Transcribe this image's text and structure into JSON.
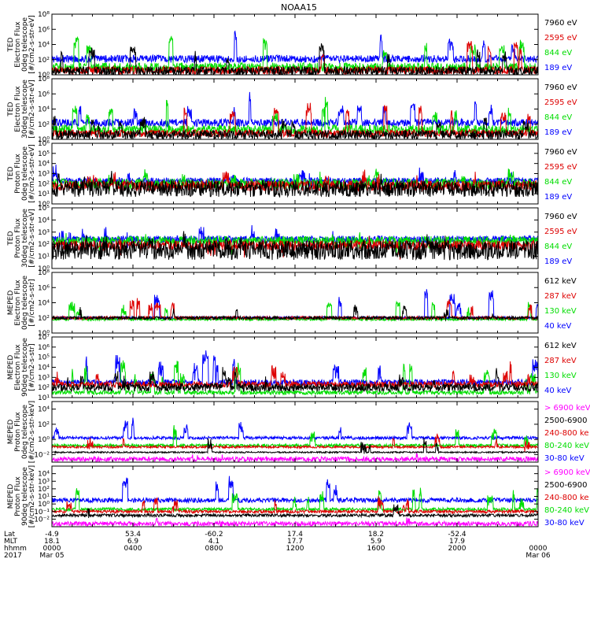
{
  "title": "NOAA15",
  "colors": {
    "black": "#000000",
    "red": "#dd0000",
    "green": "#00dd00",
    "blue": "#0000ff",
    "magenta": "#ff00ff"
  },
  "chart_data": [
    {
      "type": "line",
      "ylabel": [
        "TED",
        "Electron Flux",
        "0deg telescope",
        "[#/cm2-s-str-eV]"
      ],
      "log": true,
      "ylim_exp": [
        0,
        8
      ],
      "ytick_exps": [
        0,
        2,
        4,
        6,
        8
      ],
      "legend": [
        {
          "label": "7960 eV",
          "color": "black"
        },
        {
          "label": "2595 eV",
          "color": "red"
        },
        {
          "label": "844 eV",
          "color": "green"
        },
        {
          "label": "189 eV",
          "color": "blue"
        }
      ],
      "series": [
        {
          "color": "blue",
          "base_exp": 2.1,
          "noise": 0.5,
          "peak_exp": 6.5,
          "peak_prob": 0.055
        },
        {
          "color": "green",
          "base_exp": 1.0,
          "noise": 0.6,
          "peak_exp": 6.2,
          "peak_prob": 0.05
        },
        {
          "color": "red",
          "base_exp": 0.6,
          "noise": 0.5,
          "peak_exp": 5.2,
          "peak_prob": 0.045
        },
        {
          "color": "black",
          "base_exp": 0.5,
          "noise": 0.6,
          "peak_exp": 4.5,
          "peak_prob": 0.05
        }
      ]
    },
    {
      "type": "line",
      "ylabel": [
        "TED",
        "Electron Flux",
        "30deg telescope",
        "[#/cm2-s-str-eV]"
      ],
      "log": true,
      "ylim_exp": [
        0,
        8
      ],
      "ytick_exps": [
        0,
        2,
        4,
        6,
        8
      ],
      "legend": [
        {
          "label": "7960 eV",
          "color": "black"
        },
        {
          "label": "2595 eV",
          "color": "red"
        },
        {
          "label": "844 eV",
          "color": "green"
        },
        {
          "label": "189 eV",
          "color": "blue"
        }
      ],
      "series": [
        {
          "color": "blue",
          "base_exp": 2.2,
          "noise": 0.5,
          "peak_exp": 6.5,
          "peak_prob": 0.055
        },
        {
          "color": "green",
          "base_exp": 1.3,
          "noise": 0.6,
          "peak_exp": 6.0,
          "peak_prob": 0.05
        },
        {
          "color": "red",
          "base_exp": 0.8,
          "noise": 0.5,
          "peak_exp": 5.0,
          "peak_prob": 0.045
        },
        {
          "color": "black",
          "base_exp": 0.6,
          "noise": 0.6,
          "peak_exp": 4.4,
          "peak_prob": 0.05
        }
      ]
    },
    {
      "type": "line",
      "ylabel": [
        "TED",
        "Proton Flux",
        "0deg telescope",
        "[#/cm2-s-str-eV]"
      ],
      "log": true,
      "ylim_exp": [
        0,
        6
      ],
      "ytick_exps": [
        0,
        1,
        2,
        3,
        4,
        5,
        6
      ],
      "legend": [
        {
          "label": "7960 eV",
          "color": "black"
        },
        {
          "label": "2595 eV",
          "color": "red"
        },
        {
          "label": "844 eV",
          "color": "green"
        },
        {
          "label": "189 eV",
          "color": "blue"
        }
      ],
      "series": [
        {
          "color": "blue",
          "base_exp": 2.3,
          "noise": 0.3,
          "peak_exp": 4.0,
          "peak_prob": 0.03
        },
        {
          "color": "green",
          "base_exp": 2.0,
          "noise": 0.5,
          "peak_exp": 3.8,
          "peak_prob": 0.07
        },
        {
          "color": "red",
          "base_exp": 1.8,
          "noise": 0.5,
          "peak_exp": 3.5,
          "peak_prob": 0.05
        },
        {
          "color": "black",
          "base_exp": 1.5,
          "noise": 0.8,
          "peak_exp": 3.5,
          "peak_prob": 0.06
        }
      ]
    },
    {
      "type": "line",
      "ylabel": [
        "TED",
        "Proton Flux",
        "30deg telescope",
        "[#/cm2-s-str-eV]"
      ],
      "log": true,
      "ylim_exp": [
        0,
        5
      ],
      "ytick_exps": [
        0,
        1,
        2,
        3,
        4,
        5
      ],
      "legend": [
        {
          "label": "7960 eV",
          "color": "black"
        },
        {
          "label": "2595 eV",
          "color": "red"
        },
        {
          "label": "844 eV",
          "color": "green"
        },
        {
          "label": "189 eV",
          "color": "blue"
        }
      ],
      "series": [
        {
          "color": "blue",
          "base_exp": 2.4,
          "noise": 0.3,
          "peak_exp": 3.8,
          "peak_prob": 0.04
        },
        {
          "color": "green",
          "base_exp": 2.3,
          "noise": 0.35,
          "peak_exp": 3.2,
          "peak_prob": 0.06
        },
        {
          "color": "red",
          "base_exp": 1.9,
          "noise": 0.4,
          "peak_exp": 3.0,
          "peak_prob": 0.05
        },
        {
          "color": "black",
          "base_exp": 1.5,
          "noise": 0.8,
          "peak_exp": 3.3,
          "peak_prob": 0.06
        }
      ]
    },
    {
      "type": "line",
      "ylabel": [
        "MEPED",
        "Electron Flux",
        "0deg telescope",
        "[#/cm2-s-str]"
      ],
      "log": true,
      "ylim_exp": [
        0,
        8
      ],
      "ytick_exps": [
        0,
        2,
        4,
        6,
        8
      ],
      "legend": [
        {
          "label": "612 keV",
          "color": "black"
        },
        {
          "label": "287 keV",
          "color": "red"
        },
        {
          "label": "130 keV",
          "color": "green"
        },
        {
          "label": "40 keV",
          "color": "blue"
        }
      ],
      "series": [
        {
          "color": "blue",
          "base_exp": 2.0,
          "noise": 0.2,
          "peak_exp": 6.0,
          "peak_prob": 0.05
        },
        {
          "color": "green",
          "base_exp": 1.8,
          "noise": 0.15,
          "peak_exp": 5.0,
          "peak_prob": 0.045
        },
        {
          "color": "red",
          "base_exp": 2.0,
          "noise": 0.2,
          "peak_exp": 4.8,
          "peak_prob": 0.045
        },
        {
          "color": "black",
          "base_exp": 2.0,
          "noise": 0.2,
          "peak_exp": 4.5,
          "peak_prob": 0.04
        }
      ]
    },
    {
      "type": "line",
      "ylabel": [
        "MEPED",
        "Electron Flux",
        "90deg telescope",
        "[#/cm2-s-str]"
      ],
      "log": true,
      "ylim_exp": [
        1,
        7
      ],
      "ytick_exps": [
        1,
        2,
        3,
        4,
        5,
        6,
        7
      ],
      "legend": [
        {
          "label": "612 keV",
          "color": "black"
        },
        {
          "label": "287 keV",
          "color": "red"
        },
        {
          "label": "130 keV",
          "color": "green"
        },
        {
          "label": "40 keV",
          "color": "blue"
        }
      ],
      "series": [
        {
          "color": "blue",
          "base_exp": 2.5,
          "noise": 0.3,
          "peak_exp": 5.8,
          "peak_prob": 0.07
        },
        {
          "color": "green",
          "base_exp": 1.5,
          "noise": 0.2,
          "peak_exp": 5.0,
          "peak_prob": 0.06
        },
        {
          "color": "red",
          "base_exp": 2.3,
          "noise": 0.3,
          "peak_exp": 4.8,
          "peak_prob": 0.06
        },
        {
          "color": "black",
          "base_exp": 2.0,
          "noise": 0.4,
          "peak_exp": 4.5,
          "peak_prob": 0.06
        }
      ]
    },
    {
      "type": "line",
      "ylabel": [
        "MEPED",
        "Proton Flux",
        "0deg telescope",
        "[#/cm2-s-str-keV]"
      ],
      "log": true,
      "ylim_exp": [
        -3,
        5
      ],
      "ytick_exps": [
        -2,
        0,
        2,
        4
      ],
      "legend": [
        {
          "label": "> 6900 keV",
          "color": "magenta"
        },
        {
          "label": "2500-6900",
          "color": "black"
        },
        {
          "label": "240-800 ke",
          "color": "red"
        },
        {
          "label": "80-240 keV",
          "color": "green"
        },
        {
          "label": "30-80 keV",
          "color": "blue"
        }
      ],
      "series": [
        {
          "color": "blue",
          "base_exp": 0.2,
          "noise": 0.2,
          "peak_exp": 3.5,
          "peak_prob": 0.05
        },
        {
          "color": "green",
          "base_exp": -0.8,
          "noise": 0.2,
          "peak_exp": 2.0,
          "peak_prob": 0.05
        },
        {
          "color": "red",
          "base_exp": -1.0,
          "noise": 0.15,
          "peak_exp": 0.8,
          "peak_prob": 0.04
        },
        {
          "color": "black",
          "base_exp": -1.7,
          "noise": 0.1,
          "peak_exp": 0.3,
          "peak_prob": 0.03
        },
        {
          "color": "magenta",
          "base_exp": -2.6,
          "noise": 0.3,
          "peak_exp": -1.5,
          "peak_prob": 0.03
        }
      ]
    },
    {
      "type": "line",
      "ylabel": [
        "MEPED",
        "Proton Flux",
        "90deg telescope",
        "[#/cm2-s-str-keV]"
      ],
      "log": true,
      "ylim_exp": [
        -3,
        5
      ],
      "ytick_exps": [
        -2,
        -1,
        0,
        1,
        2,
        3,
        4
      ],
      "legend": [
        {
          "label": "> 6900 keV",
          "color": "magenta"
        },
        {
          "label": "2500-6900",
          "color": "black"
        },
        {
          "label": "240-800 ke",
          "color": "red"
        },
        {
          "label": "80-240 keV",
          "color": "green"
        },
        {
          "label": "30-80 keV",
          "color": "blue"
        }
      ],
      "series": [
        {
          "color": "blue",
          "base_exp": 0.5,
          "noise": 0.3,
          "peak_exp": 3.8,
          "peak_prob": 0.05
        },
        {
          "color": "green",
          "base_exp": -0.7,
          "noise": 0.2,
          "peak_exp": 2.5,
          "peak_prob": 0.05
        },
        {
          "color": "red",
          "base_exp": -1.0,
          "noise": 0.2,
          "peak_exp": 1.5,
          "peak_prob": 0.04
        },
        {
          "color": "black",
          "base_exp": -1.5,
          "noise": 0.2,
          "peak_exp": 0.8,
          "peak_prob": 0.03
        },
        {
          "color": "magenta",
          "base_exp": -2.6,
          "noise": 0.3,
          "peak_exp": -1.0,
          "peak_prob": 0.03
        }
      ]
    }
  ],
  "footer": {
    "rows": [
      {
        "label": "Lat",
        "values": [
          "-4.9",
          "53.4",
          "-60.2",
          "17.4",
          "18.2",
          "-52.4",
          ""
        ]
      },
      {
        "label": "MLT",
        "values": [
          "18.1",
          "6.9",
          "4.1",
          "17.7",
          "5.9",
          "17.9",
          ""
        ]
      },
      {
        "label": "hhmm",
        "values": [
          "0000",
          "0400",
          "0800",
          "1200",
          "1600",
          "2000",
          "0000"
        ]
      },
      {
        "label": "2017",
        "values": [
          "Mar 05",
          "",
          "",
          "",
          "",
          "",
          "Mar 06"
        ]
      }
    ]
  }
}
